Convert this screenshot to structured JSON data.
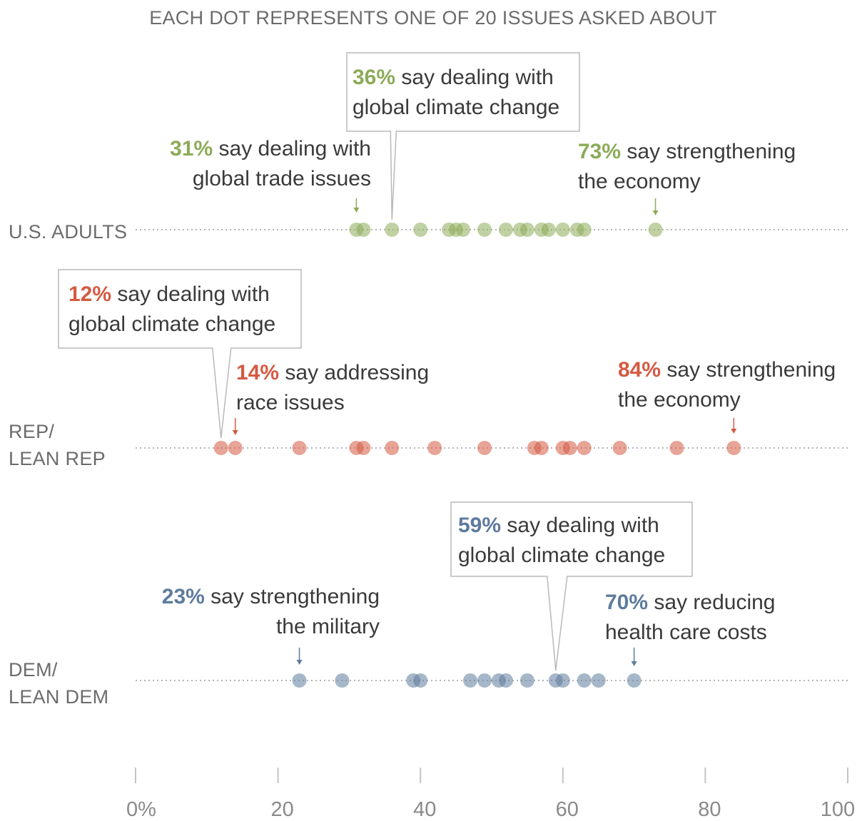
{
  "header": "EACH DOT REPRESENTS ONE OF 20 ISSUES ASKED ABOUT",
  "chart_data": {
    "type": "scatter",
    "title": "EACH DOT REPRESENTS ONE OF 20 ISSUES ASKED ABOUT",
    "x_ticks": [
      "0%",
      "20",
      "40",
      "60",
      "80",
      "100"
    ],
    "xlim": [
      0,
      100
    ],
    "grid": false,
    "series": [
      {
        "name": "U.S. ADULTS",
        "name_lines": [
          "U.S. ADULTS"
        ],
        "color": "#8cab58",
        "values": [
          31,
          32,
          36,
          40,
          44,
          45,
          46,
          49,
          52,
          54,
          55,
          57,
          58,
          60,
          62,
          63,
          73
        ],
        "annotations": [
          {
            "pct": "36%",
            "text": [
              "say dealing with",
              "global climate change"
            ],
            "x": 36,
            "boxed": true
          },
          {
            "pct": "31%",
            "text": [
              "say dealing with",
              "global trade issues"
            ],
            "x": 31,
            "boxed": false
          },
          {
            "pct": "73%",
            "text": [
              "say strengthening",
              "the economy"
            ],
            "x": 73,
            "boxed": false
          }
        ]
      },
      {
        "name": "REP/ LEAN REP",
        "name_lines": [
          "REP/",
          "LEAN REP"
        ],
        "color": "#d45a42",
        "values": [
          12,
          14,
          23,
          31,
          32,
          36,
          42,
          49,
          56,
          57,
          60,
          61,
          63,
          68,
          76,
          84
        ],
        "annotations": [
          {
            "pct": "12%",
            "text": [
              "say dealing with",
              "global climate change"
            ],
            "x": 12,
            "boxed": true
          },
          {
            "pct": "14%",
            "text": [
              "say addressing",
              "race issues"
            ],
            "x": 14,
            "boxed": false
          },
          {
            "pct": "84%",
            "text": [
              "say strengthening",
              "the economy"
            ],
            "x": 84,
            "boxed": false
          }
        ]
      },
      {
        "name": "DEM/ LEAN DEM",
        "name_lines": [
          "DEM/",
          "LEAN DEM"
        ],
        "color": "#5d7b9d",
        "values": [
          23,
          29,
          39,
          40,
          47,
          49,
          51,
          52,
          55,
          59,
          60,
          63,
          65,
          70
        ],
        "annotations": [
          {
            "pct": "59%",
            "text": [
              "say dealing with",
              "global climate change"
            ],
            "x": 59,
            "boxed": true
          },
          {
            "pct": "23%",
            "text": [
              "say strengthening",
              "the military"
            ],
            "x": 23,
            "boxed": false
          },
          {
            "pct": "70%",
            "text": [
              "say reducing",
              "health care costs"
            ],
            "x": 70,
            "boxed": false
          }
        ]
      }
    ]
  }
}
